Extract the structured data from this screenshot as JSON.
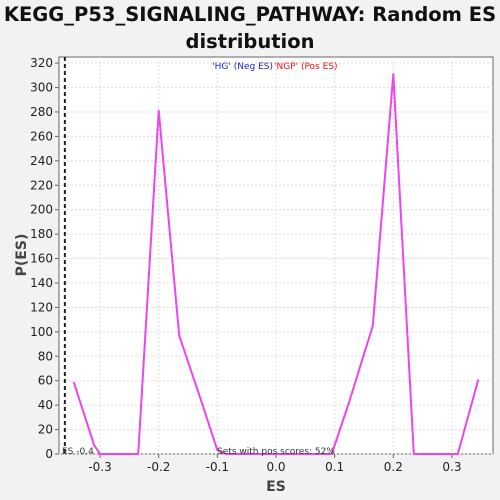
{
  "chart_data": {
    "type": "line",
    "title_line1": "KEGG_P53_SIGNALING_PATHWAY: Random ES",
    "title_line2": "distribution",
    "xlabel": "ES",
    "ylabel": "P(ES)",
    "xlim": [
      -0.37,
      0.37
    ],
    "ylim": [
      0,
      325
    ],
    "x_ticks": [
      -0.3,
      -0.2,
      -0.1,
      0.0,
      0.1,
      0.2,
      0.3
    ],
    "x_tick_labels": [
      "-0.3",
      "-0.2",
      "-0.1",
      "0.0",
      "0.1",
      "0.2",
      "0.3"
    ],
    "y_ticks": [
      0,
      20,
      40,
      60,
      80,
      100,
      120,
      140,
      160,
      180,
      200,
      220,
      240,
      260,
      280,
      300,
      320
    ],
    "y_tick_labels": [
      "0",
      "20",
      "40",
      "60",
      "80",
      "100",
      "120",
      "140",
      "160",
      "180",
      "200",
      "220",
      "240",
      "260",
      "280",
      "300",
      "320"
    ],
    "grid": true,
    "legend_neg": "'HG' (Neg ES)",
    "legend_pos": "'NGP' (Pos ES)",
    "observed_es_x": -0.36,
    "observed_es_label": "ES -0.4",
    "annotation": "Sets with pos scores: 52%",
    "series": [
      {
        "color": "#ee44ee",
        "x": [
          -0.345,
          -0.31,
          -0.3,
          -0.235,
          -0.2,
          -0.165,
          -0.13,
          -0.1,
          -0.085,
          0.095,
          0.125,
          0.165,
          0.2,
          0.235,
          0.3,
          0.31,
          0.345
        ],
        "y": [
          59,
          7,
          0,
          0,
          281,
          97,
          47,
          3,
          0,
          0,
          43,
          105,
          311,
          0,
          0,
          0,
          61
        ]
      }
    ]
  },
  "colors": {
    "neg": "#2222cc",
    "pos": "#ee1111",
    "line": "#ee44ee"
  }
}
